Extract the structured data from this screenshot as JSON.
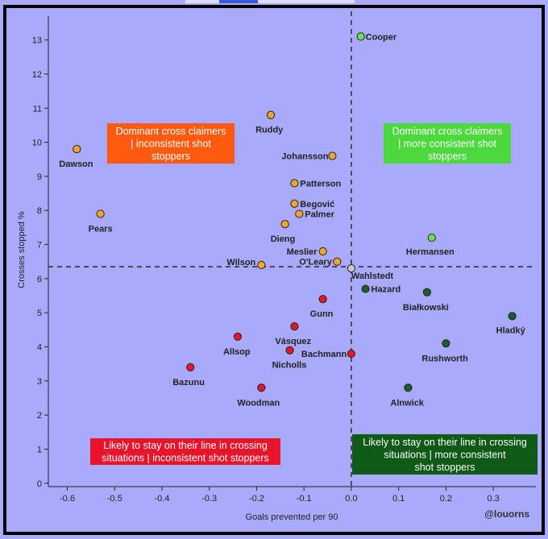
{
  "chart_data": {
    "type": "scatter",
    "xlabel": "Goals prevented per 90",
    "ylabel": "Crosses stopped %",
    "xlim": [
      -0.64,
      0.39
    ],
    "ylim": [
      -0.1,
      13.7
    ],
    "xticks": [
      "-0.6",
      "-0.5",
      "-0.4",
      "-0.3",
      "-0.2",
      "-0.1",
      "0.0",
      "0.1",
      "0.2",
      "0.3"
    ],
    "yticks": [
      "0",
      "1",
      "2",
      "3",
      "4",
      "5",
      "6",
      "7",
      "8",
      "9",
      "10",
      "11",
      "12",
      "13"
    ],
    "avg_lines": {
      "x": 0.0,
      "y": 6.35
    },
    "credit": "@louorns",
    "colors": {
      "top_right": "#66e655",
      "top_left": "#f2a52d",
      "bottom_left": "#e8142b",
      "bottom_right": "#1c5e2a"
    },
    "quadrant_labels": {
      "top_left": [
        "Dominant cross claimers",
        "| inconsistent shot",
        "stoppers"
      ],
      "top_right": [
        "Dominant cross claimers",
        "| more consistent shot",
        "stoppers"
      ],
      "bottom_left": [
        "Likely to stay on their line in crossing",
        "situations | inconsistent shot stoppers"
      ],
      "bottom_right": [
        "Likely to stay on their line in crossing",
        "situations | more consistent",
        "shot stoppers"
      ]
    },
    "points": [
      {
        "name": "Cooper",
        "x": 0.02,
        "y": 13.1,
        "group": "top_right"
      },
      {
        "name": "Hermansen",
        "x": 0.17,
        "y": 7.2,
        "group": "top_right"
      },
      {
        "name": "Ruddy",
        "x": -0.17,
        "y": 10.8,
        "group": "top_left"
      },
      {
        "name": "Dawson",
        "x": -0.58,
        "y": 9.8,
        "group": "top_left"
      },
      {
        "name": "Johansson",
        "x": -0.04,
        "y": 9.6,
        "group": "top_left"
      },
      {
        "name": "Patterson",
        "x": -0.12,
        "y": 8.8,
        "group": "top_left"
      },
      {
        "name": "Begović",
        "x": -0.12,
        "y": 8.2,
        "group": "top_left"
      },
      {
        "name": "Palmer",
        "x": -0.11,
        "y": 7.9,
        "group": "top_left"
      },
      {
        "name": "Pears",
        "x": -0.53,
        "y": 7.9,
        "group": "top_left"
      },
      {
        "name": "Dieng",
        "x": -0.14,
        "y": 7.6,
        "group": "top_left"
      },
      {
        "name": "Meslier",
        "x": -0.06,
        "y": 6.8,
        "group": "top_left"
      },
      {
        "name": "O'Leary",
        "x": -0.03,
        "y": 6.5,
        "group": "top_left"
      },
      {
        "name": "Wilson",
        "x": -0.19,
        "y": 6.4,
        "group": "top_left"
      },
      {
        "name": "Wahlstedt",
        "x": 0.0,
        "y": 6.3,
        "group": "center"
      },
      {
        "name": "Hazard",
        "x": 0.03,
        "y": 5.7,
        "group": "bottom_right"
      },
      {
        "name": "Białkowski",
        "x": 0.16,
        "y": 5.6,
        "group": "bottom_right"
      },
      {
        "name": "Hladký",
        "x": 0.34,
        "y": 4.9,
        "group": "bottom_right"
      },
      {
        "name": "Rushworth",
        "x": 0.2,
        "y": 4.1,
        "group": "bottom_right"
      },
      {
        "name": "Alnwick",
        "x": 0.12,
        "y": 2.8,
        "group": "bottom_right"
      },
      {
        "name": "Gunn",
        "x": -0.06,
        "y": 5.4,
        "group": "bottom_left"
      },
      {
        "name": "Vásquez",
        "x": -0.12,
        "y": 4.6,
        "group": "bottom_left"
      },
      {
        "name": "Allsop",
        "x": -0.24,
        "y": 4.3,
        "group": "bottom_left"
      },
      {
        "name": "Nicholls",
        "x": -0.13,
        "y": 3.9,
        "group": "bottom_left"
      },
      {
        "name": "Bachmann",
        "x": 0.0,
        "y": 3.8,
        "group": "bottom_left"
      },
      {
        "name": "Bazunu",
        "x": -0.34,
        "y": 3.4,
        "group": "bottom_left"
      },
      {
        "name": "Woodman",
        "x": -0.19,
        "y": 2.8,
        "group": "bottom_left"
      }
    ]
  }
}
